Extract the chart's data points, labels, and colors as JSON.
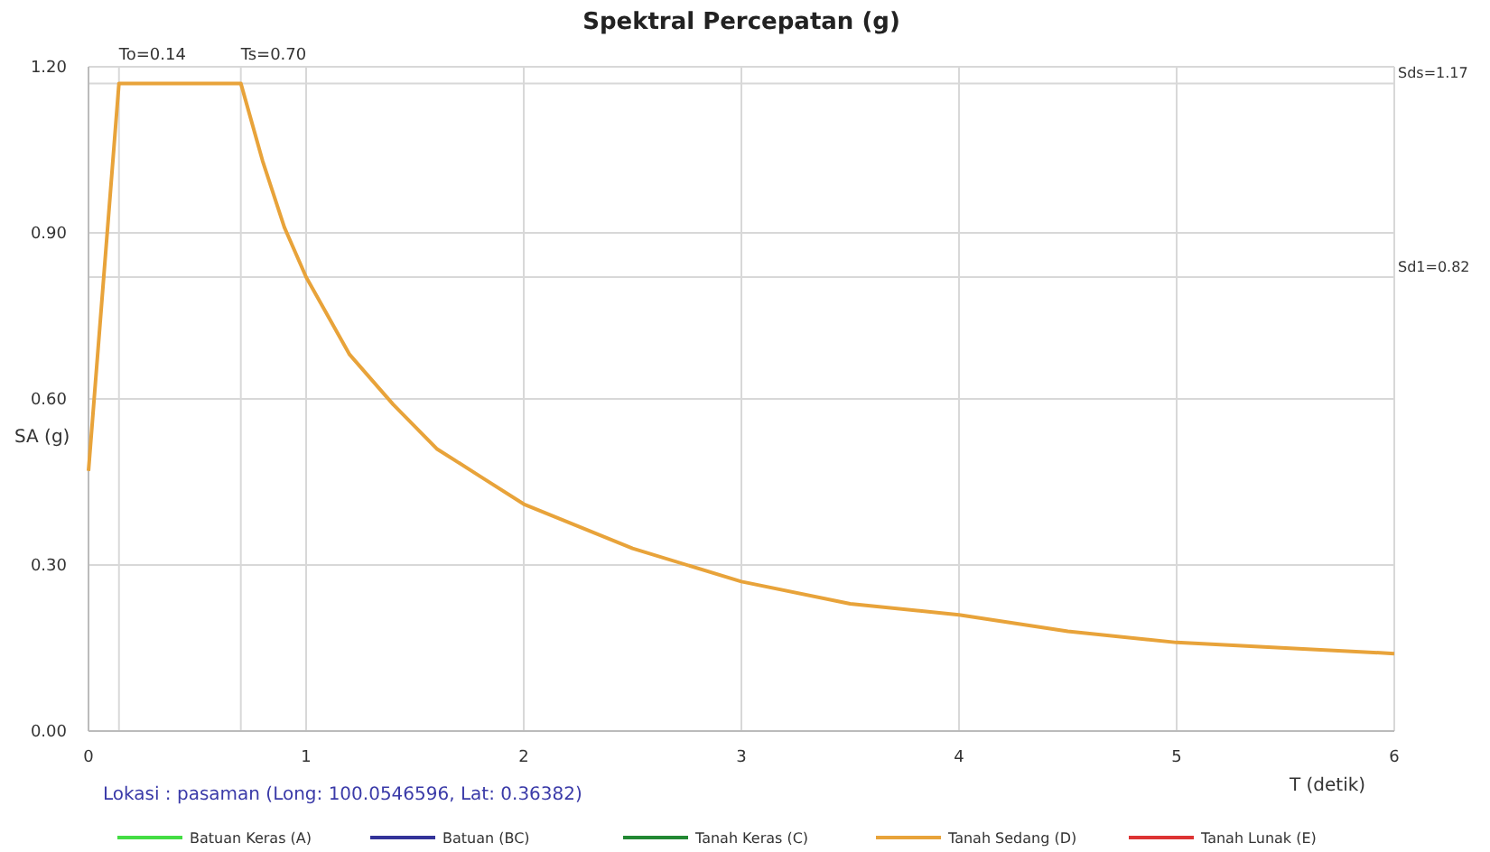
{
  "chart_data": {
    "type": "line",
    "title": "Spektral Percepatan (g)",
    "xlabel": "T (detik)",
    "ylabel": "SA (g)",
    "x": [
      0,
      0.14,
      0.7,
      0.8,
      0.9,
      1,
      1.2,
      1.4,
      1.6,
      1.8,
      2,
      2.5,
      3,
      3.5,
      4,
      4.5,
      5,
      5.5,
      6
    ],
    "series": [
      {
        "name": "Batuan Keras (A)",
        "color": "#44dd44",
        "values": [
          null,
          null,
          null,
          null,
          null,
          null,
          null,
          null,
          null,
          null,
          null,
          null,
          null,
          null,
          null,
          null,
          null,
          null,
          null
        ]
      },
      {
        "name": "Batuan (BC)",
        "color": "#333399",
        "values": [
          null,
          null,
          null,
          null,
          null,
          null,
          null,
          null,
          null,
          null,
          null,
          null,
          null,
          null,
          null,
          null,
          null,
          null,
          null
        ]
      },
      {
        "name": "Tanah Keras (C)",
        "color": "#228833",
        "values": [
          null,
          null,
          null,
          null,
          null,
          null,
          null,
          null,
          null,
          null,
          null,
          null,
          null,
          null,
          null,
          null,
          null,
          null,
          null
        ]
      },
      {
        "name": "Tanah Sedang (D)",
        "color": "#e8a33a",
        "values": [
          0.47,
          1.17,
          1.17,
          1.03,
          0.91,
          0.82,
          0.68,
          0.59,
          0.51,
          0.46,
          0.41,
          0.33,
          0.27,
          0.23,
          0.21,
          0.18,
          0.16,
          0.15,
          0.14
        ]
      },
      {
        "name": "Tanah Lunak (E)",
        "color": "#dd3333",
        "values": [
          null,
          null,
          null,
          null,
          null,
          null,
          null,
          null,
          null,
          null,
          null,
          null,
          null,
          null,
          null,
          null,
          null,
          null,
          null
        ]
      }
    ],
    "xlim": [
      0,
      6
    ],
    "xticks": [
      0,
      1,
      2,
      3,
      4,
      5,
      6
    ],
    "ylim": [
      0,
      1.2
    ],
    "yticks": [
      {
        "value": 0,
        "label": "0.00"
      },
      {
        "value": 0.3,
        "label": "0.30"
      },
      {
        "value": 0.6,
        "label": "0.60"
      },
      {
        "value": 0.9,
        "label": "0.90"
      },
      {
        "value": 1.2,
        "label": "1.20"
      }
    ],
    "ref_lines": [
      {
        "axis": "x",
        "value": 0.14,
        "label": "To=0.14"
      },
      {
        "axis": "x",
        "value": 0.7,
        "label": "Ts=0.70"
      },
      {
        "axis": "y",
        "value": 1.17,
        "label": "Sds=1.17"
      },
      {
        "axis": "y",
        "value": 0.82,
        "label": "Sd1=0.82"
      }
    ],
    "annotations": [
      "Lokasi : pasaman (Long: 100.0546596, Lat: 0.36382)"
    ],
    "grid": true,
    "legend": "bottom",
    "marker": "none",
    "line_style": "solid"
  }
}
